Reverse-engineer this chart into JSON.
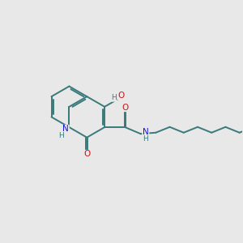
{
  "bg_color": "#e8e8e8",
  "bond_color": "#3a7a7a",
  "N_color": "#1414dd",
  "O_color": "#cc1414",
  "H_color": "#3a7a7a",
  "line_width": 1.4,
  "font_size": 7.5,
  "xlim": [
    -0.5,
    7.5
  ],
  "ylim": [
    1.8,
    6.0
  ]
}
